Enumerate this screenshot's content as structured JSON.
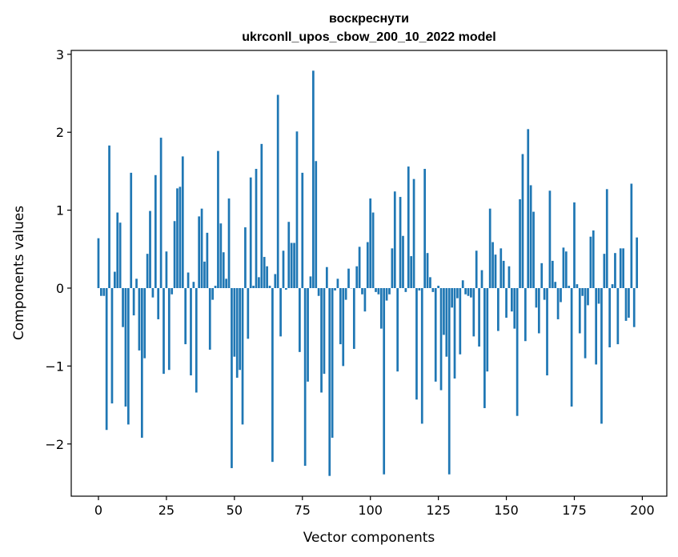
{
  "chart_data": {
    "type": "bar",
    "title": "воскреснути",
    "subtitle": "ukrconll_upos_cbow_200_10_2022 model",
    "xlabel": "Vector components",
    "ylabel": "Components values",
    "xlim": [
      -10,
      209
    ],
    "ylim": [
      -2.67,
      3.05
    ],
    "xticks": [
      0,
      25,
      50,
      75,
      100,
      125,
      150,
      175,
      200
    ],
    "yticks": [
      -2,
      -1,
      0,
      1,
      2,
      3
    ],
    "ytick_labels": [
      "−2",
      "−1",
      "0",
      "1",
      "2",
      "3"
    ],
    "grid": false,
    "color": "#1f77b4",
    "values": [
      0.64,
      -0.1,
      -0.1,
      -1.82,
      1.83,
      -1.48,
      0.21,
      0.97,
      0.84,
      -0.5,
      -1.52,
      -1.75,
      1.48,
      -0.35,
      0.12,
      -0.8,
      -1.92,
      -0.9,
      0.44,
      0.99,
      -0.12,
      1.45,
      -0.4,
      1.93,
      -1.1,
      0.47,
      -1.05,
      -0.08,
      0.86,
      1.28,
      1.3,
      1.69,
      -0.72,
      0.2,
      -1.12,
      0.08,
      -1.34,
      0.92,
      1.02,
      0.34,
      0.71,
      -0.79,
      -0.15,
      0.03,
      1.76,
      0.83,
      0.46,
      0.12,
      1.15,
      -2.31,
      -0.88,
      -1.15,
      -1.05,
      -1.75,
      0.78,
      -0.65,
      1.42,
      0.03,
      1.53,
      0.14,
      1.85,
      0.4,
      0.28,
      0.03,
      -2.23,
      0.18,
      2.48,
      -0.62,
      0.48,
      -0.02,
      0.85,
      0.58,
      0.58,
      2.01,
      -0.82,
      1.48,
      -2.28,
      -1.2,
      0.15,
      2.79,
      1.63,
      -0.1,
      -1.34,
      -1.1,
      0.27,
      -2.41,
      -1.92,
      -0.03,
      0.12,
      -0.72,
      -1.0,
      -0.15,
      0.25,
      0.0,
      -0.78,
      0.28,
      0.53,
      -0.08,
      -0.3,
      0.59,
      1.15,
      0.97,
      -0.05,
      -0.08,
      -0.52,
      -2.39,
      -0.16,
      -0.08,
      0.51,
      1.24,
      -1.07,
      1.17,
      0.67,
      -0.05,
      1.56,
      0.41,
      1.4,
      -1.43,
      -0.03,
      -1.74,
      1.53,
      0.45,
      0.14,
      -0.05,
      -1.2,
      0.03,
      -1.31,
      -0.6,
      -0.88,
      -2.39,
      -0.25,
      -1.16,
      -0.13,
      -0.85,
      0.1,
      -0.08,
      -0.1,
      -0.12,
      -0.62,
      0.48,
      -0.75,
      0.23,
      -1.54,
      -1.07,
      1.02,
      0.59,
      0.43,
      -0.55,
      0.51,
      0.35,
      -0.38,
      0.28,
      -0.3,
      -0.52,
      -1.64,
      1.14,
      1.72,
      -0.68,
      2.04,
      1.32,
      0.98,
      -0.25,
      -0.58,
      0.32,
      -0.15,
      -1.12,
      1.25,
      0.35,
      0.08,
      -0.4,
      -0.18,
      0.52,
      0.47,
      0.03,
      -1.52,
      1.1,
      0.05,
      -0.58,
      -0.1,
      -0.9,
      -0.22,
      0.66,
      0.74,
      -0.98,
      -0.2,
      -1.74,
      0.44,
      1.27,
      -0.76,
      0.05,
      0.45,
      -0.72,
      0.51,
      0.51,
      -0.42,
      -0.38,
      1.34,
      -0.5,
      0.65
    ]
  }
}
